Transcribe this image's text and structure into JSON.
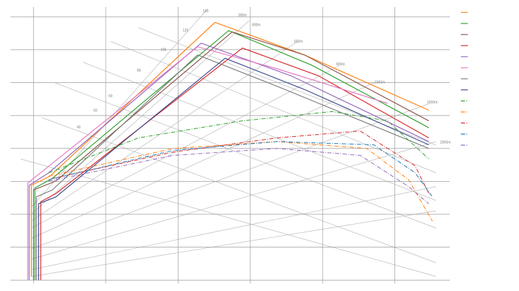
{
  "chart_data": {
    "type": "line",
    "xlim": [
      -0.32,
      5.76
    ],
    "xticks": [
      0,
      1,
      2,
      3,
      4,
      5
    ],
    "ylim": [
      -0.1,
      8.3
    ],
    "yticks": [
      0,
      1,
      2,
      3,
      4,
      5,
      6,
      7,
      8
    ],
    "grid": true,
    "annotations": [
      "140",
      "120",
      "100",
      "80",
      "60",
      "50",
      "40",
      "300m",
      "400m",
      "600m",
      "800m",
      "1000m",
      "1500m",
      "2000m"
    ],
    "series": [
      {
        "color": "#ff7f0e",
        "style": "solid",
        "x": [
          -0.03,
          -0.03,
          0.23,
          2.51,
          2.75,
          3.75,
          5.47
        ],
        "values": [
          0.11,
          2.88,
          3.16,
          7.83,
          7.64,
          6.84,
          5.16
        ]
      },
      {
        "color": "#2ca02c",
        "style": "solid",
        "x": [
          0.02,
          0.02,
          0.26,
          2.7,
          3.85,
          5.47
        ],
        "values": [
          0,
          2.8,
          3.09,
          7.58,
          6.53,
          4.63
        ]
      },
      {
        "color": "#8c564b",
        "style": "solid",
        "x": [
          0,
          0,
          0.31,
          2.75,
          3.75,
          5.47
        ],
        "values": [
          0,
          2.74,
          3.01,
          7.54,
          6.84,
          4.84
        ]
      },
      {
        "color": "#d62728",
        "style": "solid",
        "x": [
          0.1,
          0.1,
          0.31,
          2.89,
          3.94,
          5.47
        ],
        "values": [
          0,
          2.38,
          2.63,
          7.05,
          6.21,
          4.32
        ]
      },
      {
        "color": "#9467bd",
        "style": "solid",
        "x": [
          -0.06,
          -0.06,
          0.21,
          2.32,
          3.56,
          5.47
        ],
        "values": [
          0,
          2.88,
          3.26,
          7.2,
          6.21,
          4.21
        ]
      },
      {
        "color": "#e377c2",
        "style": "solid",
        "x": [
          -0.08,
          -0.08,
          0.16,
          2.27,
          3.37,
          4.9
        ],
        "values": [
          0,
          2.95,
          3.37,
          7.09,
          6.42,
          5.37
        ]
      },
      {
        "color": "#7f7f7f",
        "style": "solid",
        "x": [
          0.04,
          0.04,
          0.26,
          2.27,
          3.37,
          5.47
        ],
        "values": [
          0,
          2.53,
          2.74,
          6.84,
          5.89,
          4.0
        ]
      },
      {
        "color": "#3b4a8c",
        "style": "solid",
        "x": [
          0.07,
          0.07,
          0.31,
          2.65,
          3.75,
          5.47
        ],
        "values": [
          0,
          2.32,
          2.53,
          6.74,
          5.79,
          4.11
        ]
      },
      {
        "color": "#2ca02c",
        "style": "dashdot",
        "x": [
          0.21,
          1.45,
          2.89,
          4.13,
          4.9,
          5.47
        ],
        "values": [
          3.26,
          4.32,
          4.84,
          5.12,
          4.84,
          3.68
        ]
      },
      {
        "color": "#ff7f0e",
        "style": "dashdot",
        "x": [
          0.21,
          1.93,
          3.37,
          4.61,
          5.19,
          5.52
        ],
        "values": [
          3.16,
          4.0,
          4.21,
          4.0,
          3.05,
          1.79
        ]
      },
      {
        "color": "#d62728",
        "style": "dashdot",
        "x": [
          0.26,
          1.93,
          3.37,
          4.52,
          5.28,
          5.47
        ],
        "values": [
          3.09,
          3.89,
          4.32,
          4.53,
          3.47,
          2.63
        ]
      },
      {
        "color": "#1f77b4",
        "style": "dashdot",
        "x": [
          0.21,
          1.93,
          3.37,
          4.71,
          5.28,
          5.52
        ],
        "values": [
          3.05,
          3.94,
          4.21,
          4.11,
          3.26,
          2.53
        ]
      },
      {
        "color": "#9467bd",
        "style": "dashdot",
        "x": [
          0.21,
          1.93,
          3.37,
          4.52,
          5.19,
          5.47
        ],
        "values": [
          3.01,
          3.79,
          4.0,
          3.79,
          2.84,
          2.32
        ]
      }
    ]
  }
}
